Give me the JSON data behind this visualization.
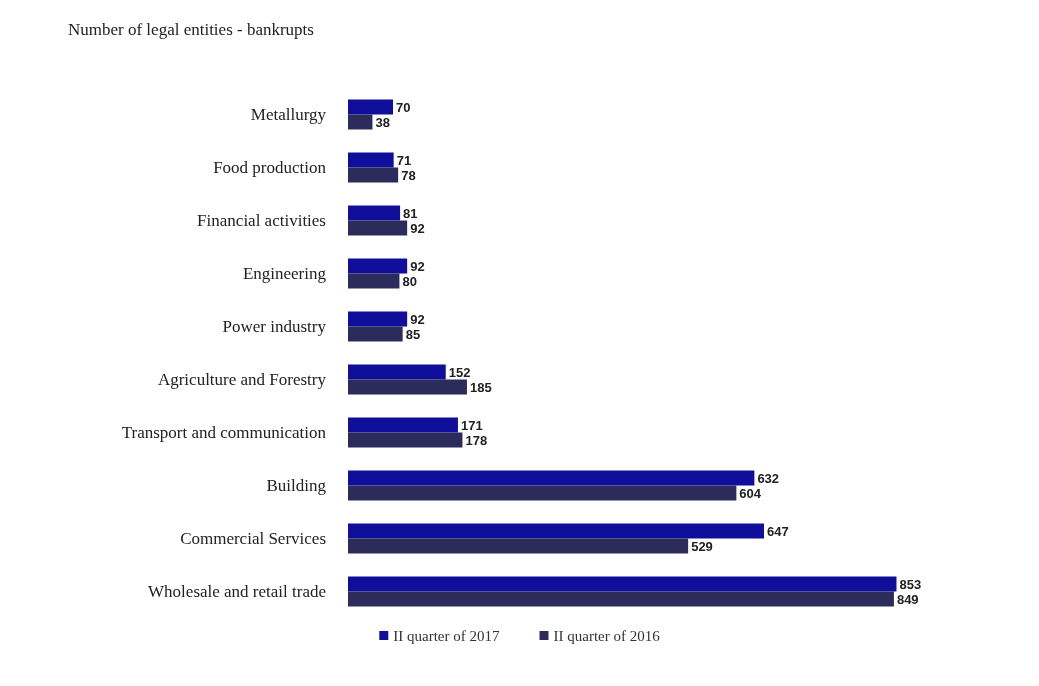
{
  "chart_data": {
    "type": "bar",
    "orientation": "horizontal",
    "title": "Number of legal entities - bankrupts",
    "categories": [
      "Metallurgy",
      "Food production",
      "Financial activities",
      "Engineering",
      "Power industry",
      "Agriculture and Forestry",
      "Transport and communication",
      "Building",
      "Commercial Services",
      "Wholesale and retail trade"
    ],
    "series": [
      {
        "name": "II quarter of 2017",
        "color": "#0f0f9c",
        "values": [
          70,
          71,
          81,
          92,
          92,
          152,
          171,
          632,
          647,
          853
        ]
      },
      {
        "name": "II quarter of 2016",
        "color": "#2b2b5c",
        "values": [
          38,
          78,
          92,
          80,
          85,
          185,
          178,
          604,
          529,
          849
        ]
      }
    ],
    "data_labels": true,
    "legend": "bottom"
  }
}
